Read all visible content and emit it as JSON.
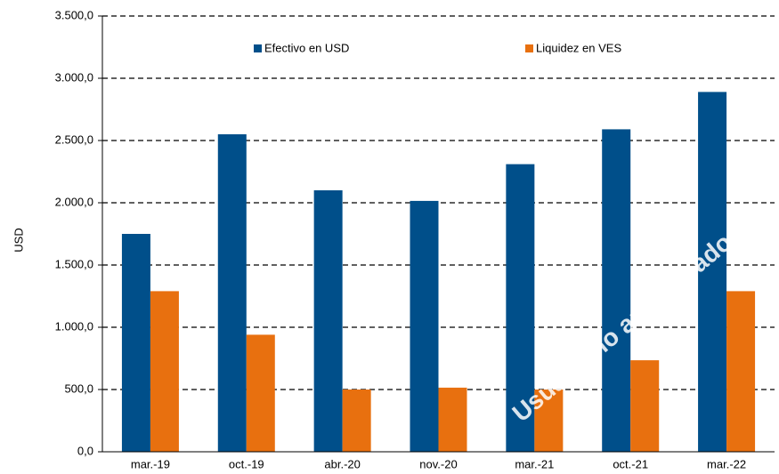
{
  "chart_data": {
    "type": "bar",
    "y_label": "USD",
    "categories": [
      "mar.-19",
      "oct.-19",
      "abr.-20",
      "nov.-20",
      "mar.-21",
      "oct.-21",
      "mar.-22"
    ],
    "series": [
      {
        "name": "Efectivo en USD",
        "color": "#004f8a",
        "values": [
          1750,
          2550,
          2100,
          2015,
          2310,
          2590,
          2890
        ]
      },
      {
        "name": "Liquidez en VES",
        "color": "#e8700f",
        "values": [
          1290,
          940,
          500,
          515,
          500,
          735,
          1290
        ]
      }
    ],
    "ylim": [
      0,
      3500
    ],
    "yticks": [
      {
        "value": 0,
        "label": "0,0"
      },
      {
        "value": 500,
        "label": "500,0"
      },
      {
        "value": 1000,
        "label": "1.000,0"
      },
      {
        "value": 1500,
        "label": "1.500,0"
      },
      {
        "value": 2000,
        "label": "2.000,0"
      },
      {
        "value": 2500,
        "label": "2.500,0"
      },
      {
        "value": 3000,
        "label": "3.000,0"
      },
      {
        "value": 3500,
        "label": "3.500,0"
      }
    ],
    "grid": true,
    "legend": "top",
    "watermark": "Usuario no autenticado"
  }
}
